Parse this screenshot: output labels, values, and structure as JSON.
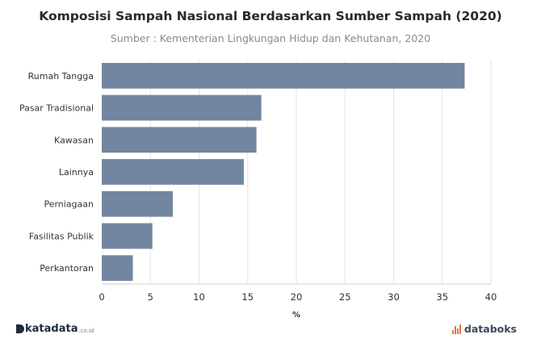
{
  "header": {
    "title": "Komposisi Sampah Nasional Berdasarkan Sumber Sampah (2020)",
    "subtitle": "Sumber : Kementerian Lingkungan Hidup dan Kehutanan, 2020"
  },
  "chart_data": {
    "type": "bar",
    "orientation": "horizontal",
    "categories": [
      "Rumah Tangga",
      "Pasar Tradisional",
      "Kawasan",
      "Lainnya",
      "Perniagaan",
      "Fasilitas Publik",
      "Perkantoran"
    ],
    "values": [
      37.3,
      16.4,
      15.9,
      14.6,
      7.3,
      5.2,
      3.2
    ],
    "title": "Komposisi Sampah Nasional Berdasarkan Sumber Sampah (2020)",
    "subtitle": "Sumber : Kementerian Lingkungan Hidup dan Kehutanan, 2020",
    "xlabel": "%",
    "ylabel": "",
    "xlim": [
      0,
      40
    ],
    "xticks": [
      0,
      5,
      10,
      15,
      20,
      25,
      30,
      35,
      40
    ],
    "grid": "vertical",
    "legend": "none",
    "bar_color": "#73869f"
  },
  "footer": {
    "left_brand": "katadata",
    "left_suffix": ".co.id",
    "right_brand": "databoks",
    "left_color": "#1f2a3a",
    "right_icon_color": "#e8734a"
  }
}
